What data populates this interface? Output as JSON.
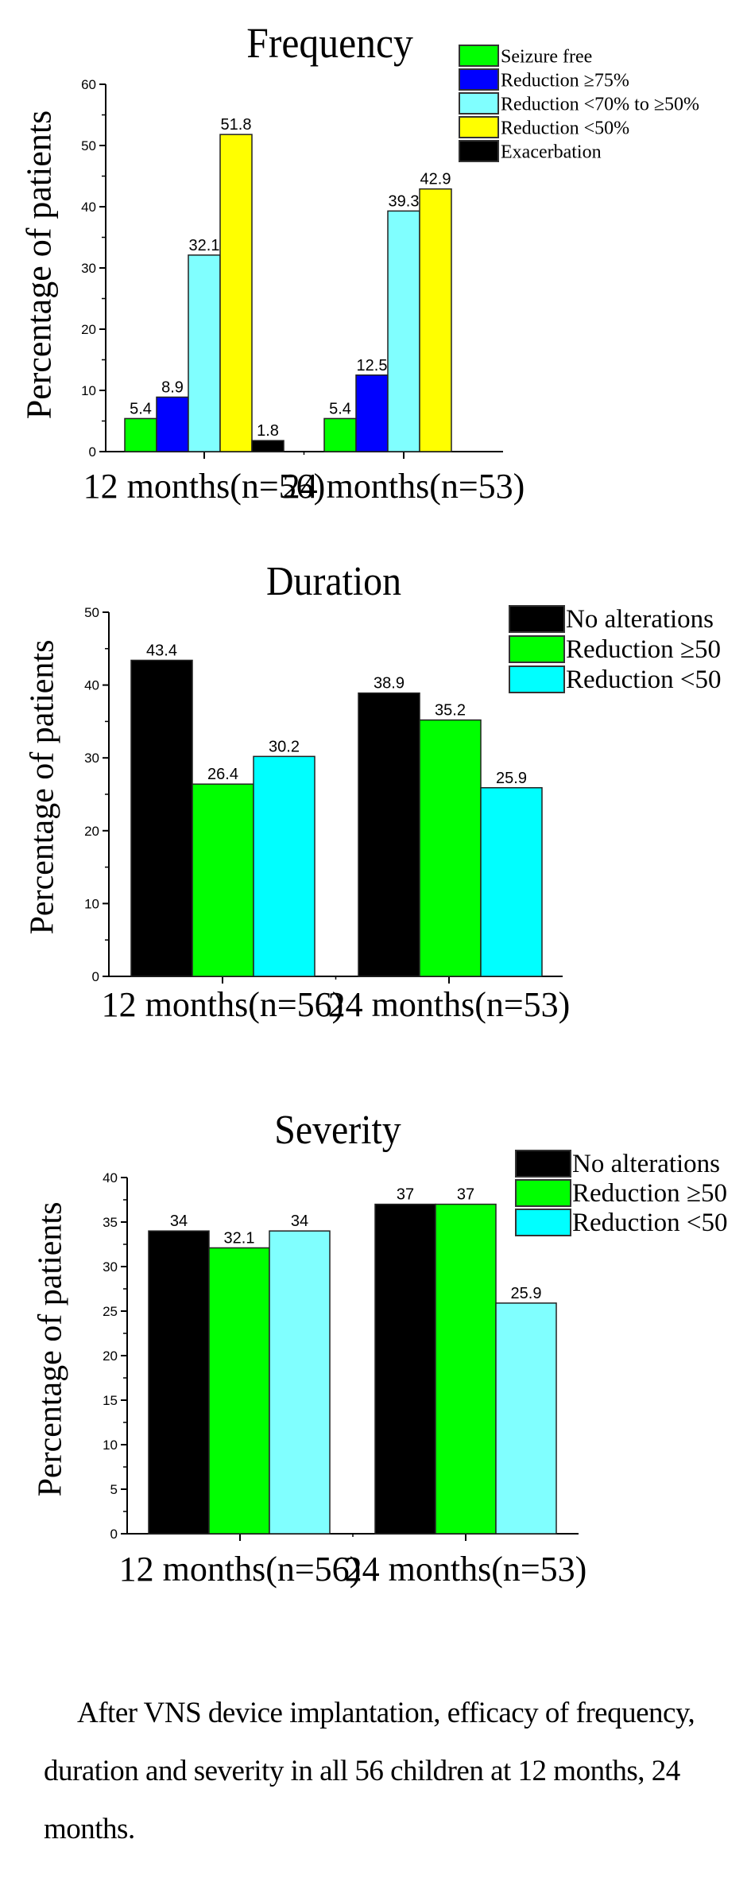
{
  "chart_data": [
    {
      "type": "bar",
      "title": "Frequency",
      "xlabel": "",
      "ylabel": "Percentage of patients",
      "ylim": [
        0,
        60
      ],
      "yticks": [
        0,
        10,
        20,
        30,
        40,
        50,
        60
      ],
      "categories": [
        "12 months(n=56)",
        "24 months(n=53)"
      ],
      "legend_position": "top-right",
      "series": [
        {
          "name": "Seizure free",
          "color": "#00ff00",
          "values": [
            5.4,
            5.4
          ],
          "labels": [
            "5.4",
            "5.4"
          ]
        },
        {
          "name": "Reduction ≥75%",
          "color": "#0000ff",
          "values": [
            8.9,
            12.5
          ],
          "labels": [
            "8.9",
            "12.5"
          ]
        },
        {
          "name": "Reduction <70% to ≥50%",
          "color": "#80ffff",
          "values": [
            32.1,
            39.3
          ],
          "labels": [
            "32.1",
            "39.3"
          ]
        },
        {
          "name": "Reduction <50%",
          "color": "#ffff00",
          "values": [
            51.8,
            42.9
          ],
          "labels": [
            "51.8",
            "42.9"
          ]
        },
        {
          "name": "Exacerbation",
          "color": "#000000",
          "values": [
            1.8,
            null
          ],
          "labels": [
            "1.8",
            ""
          ]
        }
      ]
    },
    {
      "type": "bar",
      "title": "Duration",
      "xlabel": "",
      "ylabel": "Percentage of patients",
      "ylim": [
        0,
        50
      ],
      "yticks": [
        0,
        10,
        20,
        30,
        40,
        50
      ],
      "categories": [
        "12 months(n=56)",
        "24 months(n=53)"
      ],
      "legend_position": "top-right",
      "series": [
        {
          "name": "No alterations",
          "color": "#000000",
          "legend_color": "#000000",
          "values": [
            43.4,
            38.9
          ],
          "labels": [
            "43.4",
            "38.9"
          ]
        },
        {
          "name": "Reduction ≥50",
          "color": "#00ff00",
          "legend_color": "#00ff00",
          "values": [
            26.4,
            35.2
          ],
          "labels": [
            "26.4",
            "35.2"
          ]
        },
        {
          "name": "Reduction <50",
          "color": "#00ffff",
          "legend_color": "#00ffff",
          "values": [
            30.2,
            25.9
          ],
          "labels": [
            "30.2",
            "25.9"
          ]
        }
      ]
    },
    {
      "type": "bar",
      "title": "Severity",
      "xlabel": "",
      "ylabel": "Percentage of patients",
      "ylim": [
        0,
        40
      ],
      "yticks": [
        0,
        5,
        10,
        15,
        20,
        25,
        30,
        35,
        40
      ],
      "categories": [
        "12 months(n=56)",
        "24 months(n=53)"
      ],
      "legend_position": "top-right",
      "series": [
        {
          "name": "No alterations",
          "color": "#000000",
          "legend_color": "#000000",
          "values": [
            34,
            37
          ],
          "labels": [
            "34",
            "37"
          ]
        },
        {
          "name": "Reduction ≥50",
          "color": "#00ff00",
          "legend_color": "#00ff00",
          "values": [
            32.1,
            37
          ],
          "labels": [
            "32.1",
            "37"
          ]
        },
        {
          "name": "Reduction <50",
          "color": "#80ffff",
          "legend_color": "#00ffff",
          "values": [
            34,
            25.9
          ],
          "labels": [
            "34",
            "25.9"
          ]
        }
      ]
    }
  ],
  "caption": "After VNS device implantation, efficacy of frequency, duration and severity in all 56 children at 12 months, 24 months."
}
